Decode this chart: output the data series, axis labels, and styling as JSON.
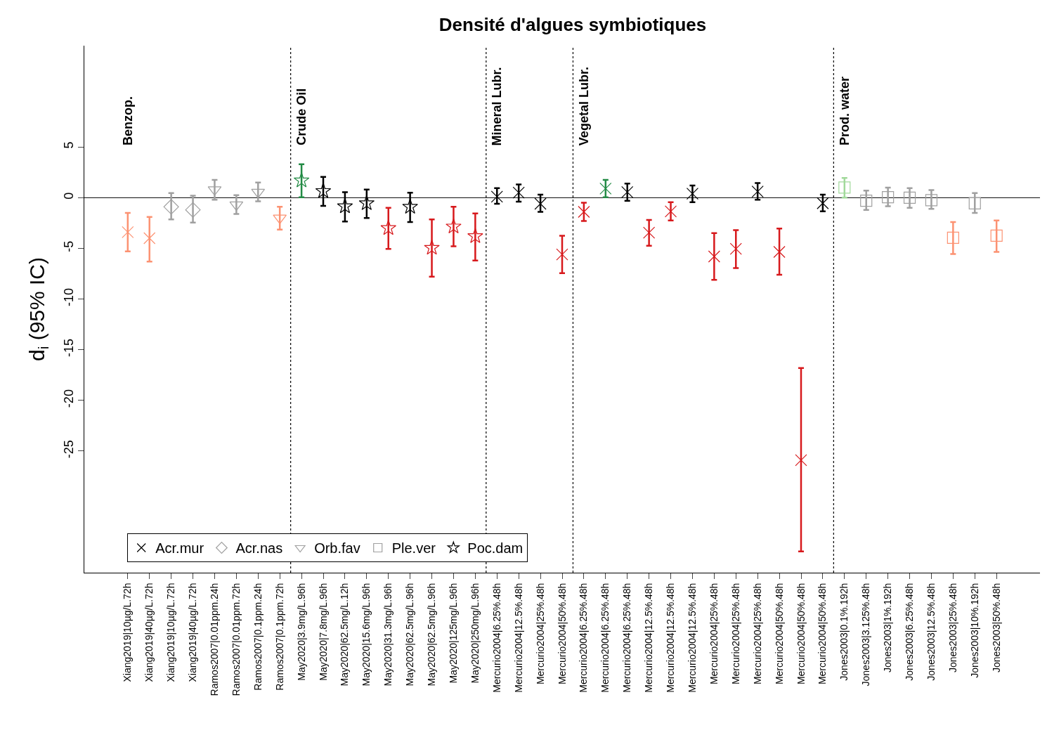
{
  "chart_data": {
    "type": "scatter",
    "title": "Densité d'algues symbiotiques",
    "ylabel": "d$_{i}$ (95% IC)",
    "categories": [
      "Xiang2019|10µg/L.72h",
      "Xiang2019|40µg/L.72h",
      "Xiang2019|10µg/L.72h",
      "Xiang2019|40µg/L.72h",
      "Ramos2007|0.01ppm.24h",
      "Ramos2007|0.01ppm.72h",
      "Ramos2007|0.1ppm.24h",
      "Ramos2007|0.1ppm.72h",
      "May2020|3.9mg/L.96h",
      "May2020|7.8mg/L.96h",
      "May2020|62.5mg/L.12h",
      "May2020|15.6mg/L.96h",
      "May2020|31.3mg/L.96h",
      "May2020|62.5mg/L.96h",
      "May2020|62.5mg/L.96h",
      "May2020|125mg/L.96h",
      "May2020|250mg/L.96h",
      "Mercurio2004|6.25%.48h",
      "Mercurio2004|12.5%.48h",
      "Mercurio2004|25%.48h",
      "Mercurio2004|50%.48h",
      "Mercurio2004|6.25%.48h",
      "Mercurio2004|6.25%.48h",
      "Mercurio2004|6.25%.48h",
      "Mercurio2004|12.5%.48h",
      "Mercurio2004|12.5%.48h",
      "Mercurio2004|12.5%.48h",
      "Mercurio2004|25%.48h",
      "Mercurio2004|25%.48h",
      "Mercurio2004|25%.48h",
      "Mercurio2004|50%.48h",
      "Mercurio2004|50%.48h",
      "Mercurio2004|50%.48h",
      "Jones2003|0.1%.192h",
      "Jones2003|3.125%.48h",
      "Jones2003|1%.192h",
      "Jones2003|6.25%.48h",
      "Jones2003|12.5%.48h",
      "Jones2003|25%.48h",
      "Jones2003|10%.192h",
      "Jones2003|50%.48h"
    ],
    "ylim": [
      -37,
      15
    ],
    "yticks": [
      5,
      0,
      -5,
      -10,
      -15,
      -20,
      -25
    ],
    "series": [
      {
        "name": "Acr.mur",
        "marker": "cross",
        "color": "#000000",
        "values": [
          -3.4,
          -4.0,
          null,
          null,
          null,
          null,
          null,
          null,
          null,
          null,
          null,
          null,
          null,
          null,
          null,
          null,
          null,
          0.1,
          0.5,
          -0.6,
          -5.6,
          -1.4,
          0.9,
          0.55,
          -3.45,
          -1.35,
          0.4,
          -5.8,
          -5.05,
          0.6,
          -5.35,
          -25.9,
          -0.55,
          null,
          null,
          null,
          null,
          null,
          null,
          null,
          null
        ],
        "errors": [
          [
            -5.3,
            -1.5
          ],
          [
            -6.3,
            -1.9
          ],
          null,
          null,
          null,
          null,
          null,
          null,
          null,
          null,
          null,
          null,
          null,
          null,
          null,
          null,
          null,
          [
            -0.6,
            0.95
          ],
          [
            -0.4,
            1.3
          ],
          [
            -1.4,
            0.3
          ],
          [
            -7.45,
            -3.75
          ],
          [
            -2.3,
            -0.5
          ],
          [
            0.05,
            1.75
          ],
          [
            -0.3,
            1.4
          ],
          [
            -4.75,
            -2.2
          ],
          [
            -2.25,
            -0.45
          ],
          [
            -0.45,
            1.2
          ],
          [
            -8.1,
            -3.5
          ],
          [
            -6.95,
            -3.2
          ],
          [
            -0.2,
            1.45
          ],
          [
            -7.6,
            -3.05
          ],
          [
            -34.9,
            -16.8
          ],
          [
            -1.35,
            0.3
          ],
          null,
          null,
          null,
          null,
          null,
          null,
          null,
          null
        ],
        "colors": [
          "#fc9272",
          "#fc9272",
          null,
          null,
          null,
          null,
          null,
          null,
          null,
          null,
          null,
          null,
          null,
          null,
          null,
          null,
          null,
          "#000000",
          "#000000",
          "#000000",
          "#d7191c",
          "#d7191c",
          "#238b45",
          "#000000",
          "#d7191c",
          "#d7191c",
          "#000000",
          "#d7191c",
          "#d7191c",
          "#000000",
          "#d7191c",
          "#d7191c",
          "#000000",
          null,
          null,
          null,
          null,
          null,
          null,
          null,
          null
        ]
      },
      {
        "name": "Acr.nas",
        "marker": "diamond",
        "color": "#a0a0a0",
        "values": [
          null,
          null,
          -0.9,
          -1.2,
          null,
          null,
          null,
          null,
          null,
          null,
          null,
          null,
          null,
          null,
          null,
          null,
          null,
          null,
          null,
          null,
          null,
          null,
          null,
          null,
          null,
          null,
          null,
          null,
          null,
          null,
          null,
          null,
          null,
          null,
          null,
          null,
          null,
          null,
          null,
          null,
          null
        ],
        "errors": [
          null,
          null,
          [
            -2.15,
            0.45
          ],
          [
            -2.45,
            0.2
          ],
          null,
          null,
          null,
          null,
          null,
          null,
          null,
          null,
          null,
          null,
          null,
          null,
          null,
          null,
          null,
          null,
          null,
          null,
          null,
          null,
          null,
          null,
          null,
          null,
          null,
          null,
          null,
          null,
          null,
          null,
          null,
          null,
          null,
          null,
          null,
          null,
          null
        ],
        "colors": [
          null,
          null,
          "#a0a0a0",
          "#a0a0a0",
          null,
          null,
          null,
          null,
          null,
          null,
          null,
          null,
          null,
          null,
          null,
          null,
          null,
          null,
          null,
          null,
          null,
          null,
          null,
          null,
          null,
          null,
          null,
          null,
          null,
          null,
          null,
          null,
          null,
          null,
          null,
          null,
          null,
          null,
          null,
          null,
          null
        ]
      },
      {
        "name": "Orb.fav",
        "marker": "triangle",
        "color": "#a0a0a0",
        "values": [
          null,
          null,
          null,
          null,
          0.8,
          -0.7,
          0.55,
          -2.0,
          null,
          null,
          null,
          null,
          null,
          null,
          null,
          null,
          null,
          null,
          null,
          null,
          null,
          null,
          null,
          null,
          null,
          null,
          null,
          null,
          null,
          null,
          null,
          null,
          null,
          null,
          null,
          null,
          null,
          null,
          null,
          null,
          null
        ],
        "errors": [
          null,
          null,
          null,
          null,
          [
            -0.2,
            1.75
          ],
          [
            -1.6,
            0.25
          ],
          [
            -0.35,
            1.5
          ],
          [
            -3.15,
            -0.9
          ],
          null,
          null,
          null,
          null,
          null,
          null,
          null,
          null,
          null,
          null,
          null,
          null,
          null,
          null,
          null,
          null,
          null,
          null,
          null,
          null,
          null,
          null,
          null,
          null,
          null,
          null,
          null,
          null,
          null,
          null,
          null,
          null,
          null
        ],
        "colors": [
          null,
          null,
          null,
          null,
          "#a0a0a0",
          "#a0a0a0",
          "#a0a0a0",
          "#fc9272",
          null,
          null,
          null,
          null,
          null,
          null,
          null,
          null,
          null,
          null,
          null,
          null,
          null,
          null,
          null,
          null,
          null,
          null,
          null,
          null,
          null,
          null,
          null,
          null,
          null,
          null,
          null,
          null,
          null,
          null,
          null,
          null,
          null
        ]
      },
      {
        "name": "Ple.ver",
        "marker": "square",
        "color": "#a0a0a0",
        "values": [
          null,
          null,
          null,
          null,
          null,
          null,
          null,
          null,
          null,
          null,
          null,
          null,
          null,
          null,
          null,
          null,
          null,
          null,
          null,
          null,
          null,
          null,
          null,
          null,
          null,
          null,
          null,
          null,
          null,
          null,
          null,
          null,
          null,
          1.0,
          -0.3,
          0.05,
          0.0,
          -0.25,
          -3.95,
          -0.55,
          -3.75
        ],
        "errors": [
          null,
          null,
          null,
          null,
          null,
          null,
          null,
          null,
          null,
          null,
          null,
          null,
          null,
          null,
          null,
          null,
          null,
          null,
          null,
          null,
          null,
          null,
          null,
          null,
          null,
          null,
          null,
          null,
          null,
          null,
          null,
          null,
          null,
          [
            0.0,
            1.95
          ],
          [
            -1.2,
            0.7
          ],
          [
            -0.85,
            1.0
          ],
          [
            -1.0,
            0.95
          ],
          [
            -1.1,
            0.75
          ],
          [
            -5.55,
            -2.4
          ],
          [
            -1.5,
            0.45
          ],
          [
            -5.35,
            -2.25
          ]
        ],
        "colors": [
          null,
          null,
          null,
          null,
          null,
          null,
          null,
          null,
          null,
          null,
          null,
          null,
          null,
          null,
          null,
          null,
          null,
          null,
          null,
          null,
          null,
          null,
          null,
          null,
          null,
          null,
          null,
          null,
          null,
          null,
          null,
          null,
          null,
          "#a1d99b",
          "#a0a0a0",
          "#a0a0a0",
          "#a0a0a0",
          "#a0a0a0",
          "#fc9272",
          "#a0a0a0",
          "#fc9272"
        ]
      },
      {
        "name": "Poc.dam",
        "marker": "star",
        "color": "#000000",
        "values": [
          null,
          null,
          null,
          null,
          null,
          null,
          null,
          null,
          1.7,
          0.65,
          -0.85,
          -0.55,
          -3.0,
          -0.9,
          -4.95,
          -2.85,
          -3.8,
          null,
          null,
          null,
          null,
          null,
          null,
          null,
          null,
          null,
          null,
          null,
          null,
          null,
          null,
          null,
          null,
          null,
          null,
          null,
          null,
          null,
          null,
          null,
          null
        ],
        "errors": [
          null,
          null,
          null,
          null,
          null,
          null,
          null,
          null,
          [
            0.05,
            3.3
          ],
          [
            -0.8,
            2.05
          ],
          [
            -2.35,
            0.55
          ],
          [
            -2.0,
            0.8
          ],
          [
            -5.05,
            -1.0
          ],
          [
            -2.4,
            0.5
          ],
          [
            -7.8,
            -2.15
          ],
          [
            -4.8,
            -0.9
          ],
          [
            -6.2,
            -1.55
          ],
          null,
          null,
          null,
          null,
          null,
          null,
          null,
          null,
          null,
          null,
          null,
          null,
          null,
          null,
          null,
          null,
          null,
          null,
          null,
          null,
          null,
          null,
          null,
          null
        ],
        "colors": [
          null,
          null,
          null,
          null,
          null,
          null,
          null,
          null,
          "#238b45",
          "#000000",
          "#000000",
          "#000000",
          "#d7191c",
          "#000000",
          "#d7191c",
          "#d7191c",
          "#d7191c",
          null,
          null,
          null,
          null,
          null,
          null,
          null,
          null,
          null,
          null,
          null,
          null,
          null,
          null,
          null,
          null,
          null,
          null,
          null,
          null,
          null,
          null,
          null,
          null
        ]
      }
    ],
    "ref_lines": [
      {
        "axis": "y",
        "value": 0,
        "color": "#000000",
        "line_style": "solid"
      }
    ],
    "annotations": [
      "Benzop.",
      "Crude Oil",
      "Mineral Lubr.",
      "Vegetal Lubr.",
      "Prod. water"
    ],
    "legend": "bottom left",
    "grid": false
  }
}
